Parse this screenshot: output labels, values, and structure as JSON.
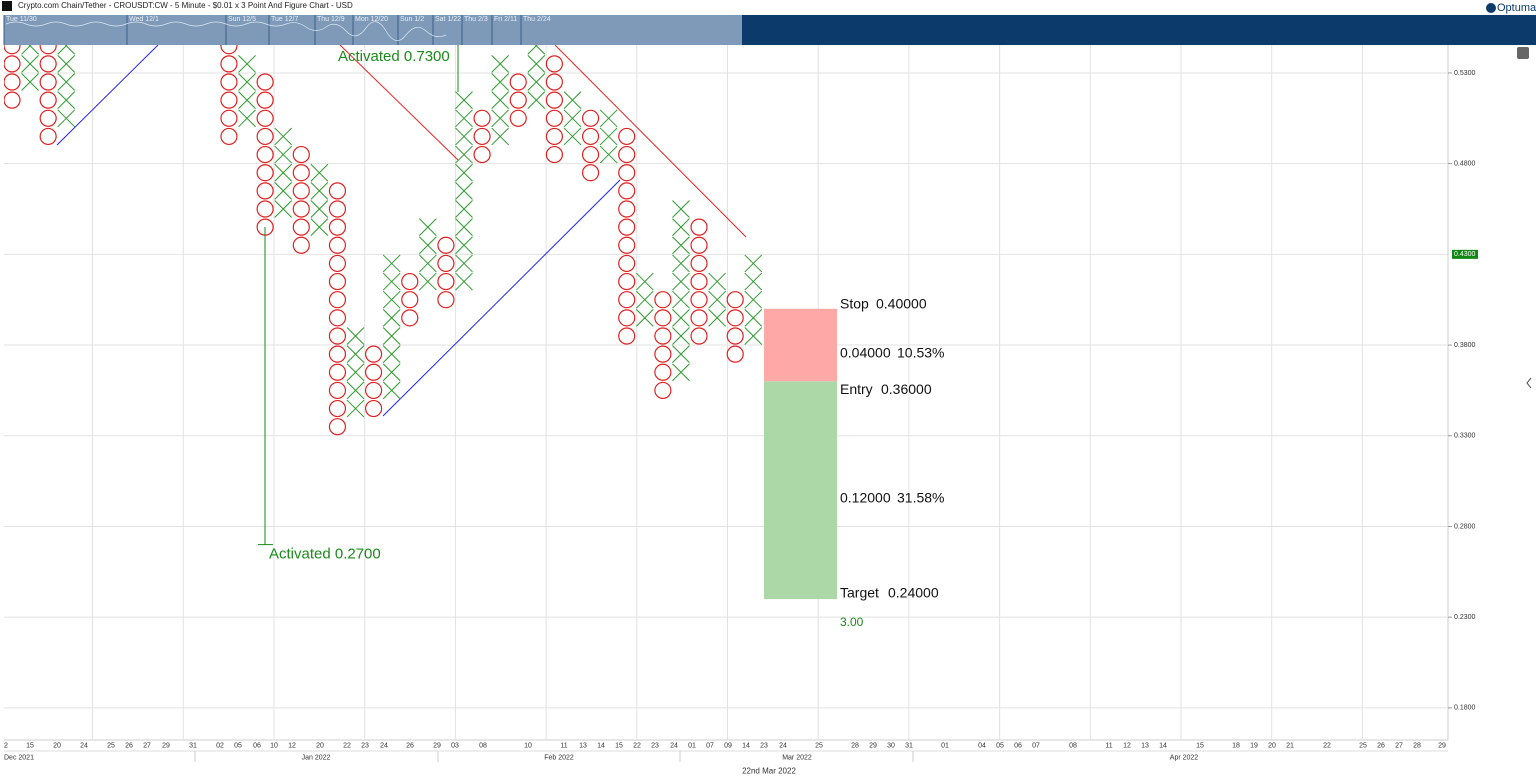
{
  "window_title": "Crypto.com Chain/Tether - CROUSDT:CW - 5 Minute - $0.01 x 3 Point And Figure Chart - USD",
  "brand": "Optuma",
  "navigator_labels": [
    "Tue 11/30",
    "Wed 12/1",
    "Sun 12/5",
    "Tue 12/7",
    "Thu 12/9",
    "Mon 12/20",
    "Sun 1/2",
    "Sat 1/22",
    "Thu 2/3",
    "Fri 2/11",
    "Thu 2/24"
  ],
  "chart_data": {
    "type": "point_and_figure",
    "ylim": [
      0.1623,
      0.5454
    ],
    "yticks": [
      {
        "value": 0.53,
        "label": "0.5300"
      },
      {
        "value": 0.48,
        "label": "0.4800"
      },
      {
        "value": 0.38,
        "label": "0.3800"
      },
      {
        "value": 0.33,
        "label": "0.3300"
      },
      {
        "value": 0.28,
        "label": "0.2800"
      },
      {
        "value": 0.23,
        "label": "0.2300"
      },
      {
        "value": 0.18,
        "label": "0.1800"
      }
    ],
    "last_price": {
      "value": 0.43,
      "label": "0.4300"
    },
    "x_day_labels": [
      "2",
      "15",
      "20",
      "24",
      "25",
      "26",
      "27",
      "29",
      "31",
      "02",
      "05",
      "06",
      "10",
      "12",
      "20",
      "22",
      "23",
      "24",
      "26",
      "29",
      "03",
      "08",
      "10",
      "11",
      "13",
      "14",
      "15",
      "22",
      "23",
      "24",
      "01",
      "07",
      "09",
      "14",
      "23",
      "24",
      "25",
      "28",
      "29",
      "30",
      "31",
      "01",
      "04",
      "05",
      "06",
      "07",
      "08",
      "11",
      "12",
      "13",
      "14",
      "15",
      "18",
      "19",
      "20",
      "21",
      "22",
      "25",
      "26",
      "27",
      "28",
      "29"
    ],
    "x_month_labels": [
      "Dec 2021",
      "Jan 2022",
      "Feb 2022",
      "Mar 2022",
      "Apr 2022"
    ],
    "x_cursor_label": "22nd Mar 2022",
    "up_color": "#2e9a2e",
    "down_color": "#e02020",
    "columns": [
      {
        "kind": "O",
        "low": 0.515,
        "high": 0.545
      },
      {
        "kind": "X",
        "low": 0.525,
        "high": 0.545
      },
      {
        "kind": "O",
        "low": 0.495,
        "high": 0.545
      },
      {
        "kind": "X",
        "low": 0.505,
        "high": 0.545
      },
      {
        "kind": "O",
        "low": 0.495,
        "high": 0.545
      },
      {
        "kind": "X",
        "low": 0.505,
        "high": 0.535
      },
      {
        "kind": "O",
        "low": 0.445,
        "high": 0.525
      },
      {
        "kind": "X",
        "low": 0.455,
        "high": 0.495
      },
      {
        "kind": "O",
        "low": 0.435,
        "high": 0.485
      },
      {
        "kind": "X",
        "low": 0.445,
        "high": 0.475
      },
      {
        "kind": "O",
        "low": 0.335,
        "high": 0.465
      },
      {
        "kind": "X",
        "low": 0.345,
        "high": 0.385
      },
      {
        "kind": "O",
        "low": 0.345,
        "high": 0.375
      },
      {
        "kind": "X",
        "low": 0.355,
        "high": 0.425
      },
      {
        "kind": "O",
        "low": 0.395,
        "high": 0.415
      },
      {
        "kind": "X",
        "low": 0.415,
        "high": 0.445
      },
      {
        "kind": "O",
        "low": 0.405,
        "high": 0.435
      },
      {
        "kind": "X",
        "low": 0.415,
        "high": 0.515
      },
      {
        "kind": "O",
        "low": 0.485,
        "high": 0.505
      },
      {
        "kind": "X",
        "low": 0.495,
        "high": 0.535
      },
      {
        "kind": "O",
        "low": 0.505,
        "high": 0.525
      },
      {
        "kind": "X",
        "low": 0.515,
        "high": 0.545
      },
      {
        "kind": "O",
        "low": 0.485,
        "high": 0.535
      },
      {
        "kind": "X",
        "low": 0.495,
        "high": 0.515
      },
      {
        "kind": "O",
        "low": 0.475,
        "high": 0.505
      },
      {
        "kind": "X",
        "low": 0.485,
        "high": 0.505
      },
      {
        "kind": "O",
        "low": 0.385,
        "high": 0.495
      },
      {
        "kind": "X",
        "low": 0.395,
        "high": 0.415
      },
      {
        "kind": "O",
        "low": 0.355,
        "high": 0.405
      },
      {
        "kind": "X",
        "low": 0.365,
        "high": 0.455
      },
      {
        "kind": "O",
        "low": 0.385,
        "high": 0.445
      },
      {
        "kind": "X",
        "low": 0.395,
        "high": 0.415
      },
      {
        "kind": "O",
        "low": 0.375,
        "high": 0.405
      },
      {
        "kind": "X",
        "low": 0.385,
        "high": 0.425
      }
    ],
    "box_size": 0.01,
    "annotations": {
      "activated_high": "Activated 0.7300",
      "activated_low": {
        "text": "Activated 0.2700",
        "value": 0.27
      }
    },
    "position": {
      "stop": {
        "label": "Stop",
        "value": 0.4,
        "value_label": "0.40000"
      },
      "entry": {
        "label": "Entry",
        "value": 0.36,
        "value_label": "0.36000"
      },
      "target": {
        "label": "Target",
        "value": 0.24,
        "value_label": "0.24000"
      },
      "risk": {
        "amount": "0.04000",
        "percent": "10.53%"
      },
      "reward": {
        "amount": "0.12000",
        "percent": "31.58%"
      },
      "ratio": "3.00"
    }
  }
}
